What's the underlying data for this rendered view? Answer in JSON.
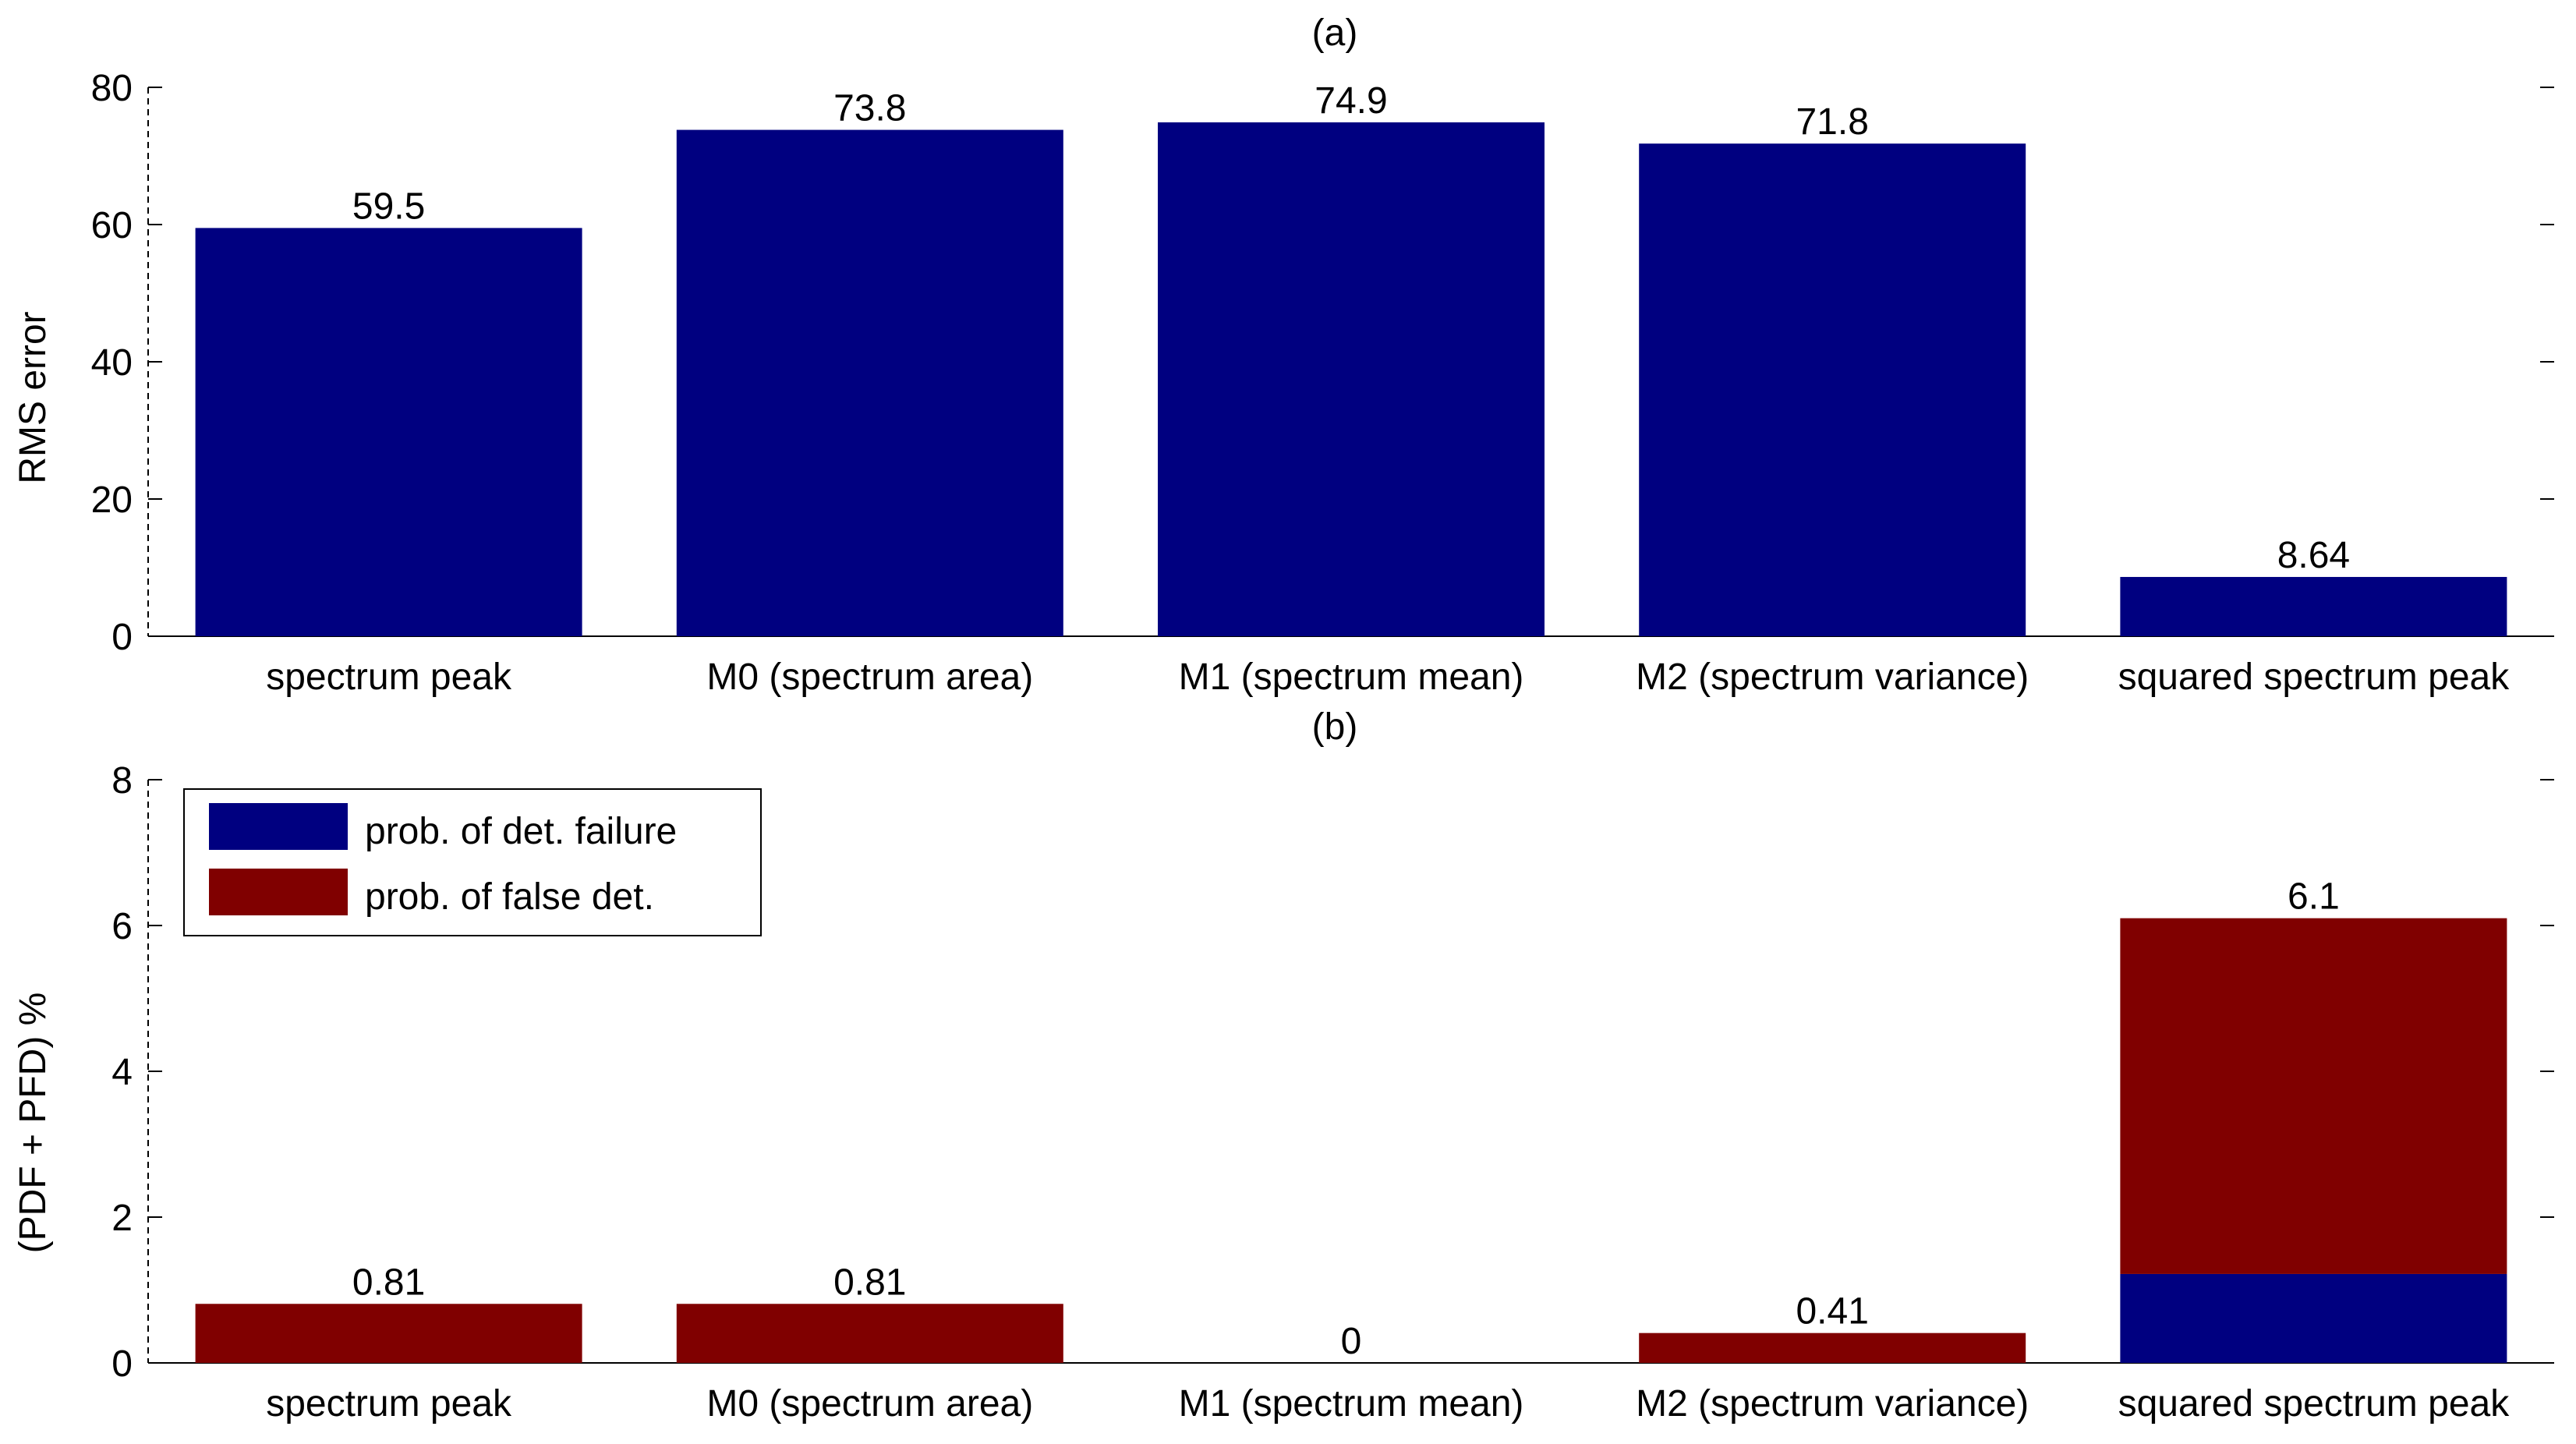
{
  "chart_data": [
    {
      "type": "bar",
      "title": "(a)",
      "xlabel": "",
      "ylabel": "RMS error",
      "ylim": [
        0,
        80
      ],
      "yticks": [
        0,
        20,
        40,
        60,
        80
      ],
      "categories": [
        "spectrum peak",
        "M0 (spectrum area)",
        "M1 (spectrum mean)",
        "M2 (spectrum variance)",
        "squared spectrum peak"
      ],
      "values": [
        59.5,
        73.8,
        74.9,
        71.8,
        8.64
      ],
      "data_labels": [
        "59.5",
        "73.8",
        "74.9",
        "71.8",
        "8.64"
      ],
      "color": "#000080",
      "grid": false
    },
    {
      "type": "bar",
      "stacked": true,
      "title": "(b)",
      "xlabel": "",
      "ylabel": "(PDF + PFD) %",
      "ylim": [
        0,
        8
      ],
      "yticks": [
        0,
        2,
        4,
        6,
        8
      ],
      "categories": [
        "spectrum peak",
        "M0 (spectrum area)",
        "M1 (spectrum mean)",
        "M2 (spectrum variance)",
        "squared spectrum peak"
      ],
      "series": [
        {
          "name": "prob. of det. failure",
          "values": [
            0,
            0,
            0,
            0,
            1.22
          ],
          "color": "#000080"
        },
        {
          "name": "prob. of false det.",
          "values": [
            0.81,
            0.81,
            0,
            0.41,
            4.88
          ],
          "color": "#800000"
        }
      ],
      "totals": [
        0.81,
        0.81,
        0,
        0.41,
        6.1
      ],
      "data_labels": [
        "0.81",
        "0.81",
        "0",
        "0.41",
        "6.1"
      ],
      "legend_position": "top-left",
      "grid": false
    }
  ]
}
